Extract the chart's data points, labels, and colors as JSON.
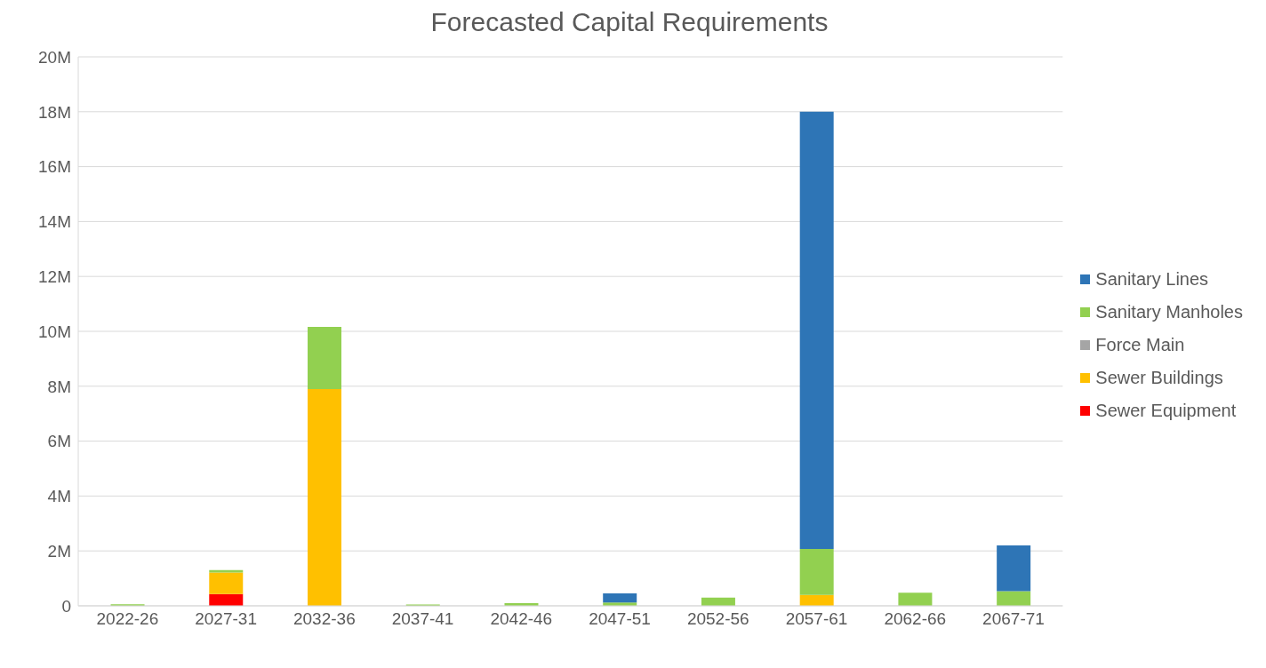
{
  "chart_data": {
    "type": "bar",
    "title": "Forecasted Capital Requirements",
    "stacked": true,
    "grid": "y",
    "legend": "right",
    "categories": [
      "2022-26",
      "2027-31",
      "2032-36",
      "2037-41",
      "2042-46",
      "2047-51",
      "2052-56",
      "2057-61",
      "2062-66",
      "2067-71"
    ],
    "ylim": [
      0,
      20
    ],
    "yticks": [
      0,
      {
        "value": 2,
        "label": "2M"
      },
      {
        "value": 4,
        "label": "4M"
      },
      {
        "value": 6,
        "label": "6M"
      },
      {
        "value": 8,
        "label": "8M"
      },
      {
        "value": 10,
        "label": "10M"
      },
      {
        "value": 12,
        "label": "12M"
      },
      {
        "value": 14,
        "label": "14M"
      },
      {
        "value": 16,
        "label": "16M"
      },
      {
        "value": 18,
        "label": "18M"
      },
      {
        "value": 20,
        "label": "20M"
      }
    ],
    "series": [
      {
        "name": "Sewer Equipment",
        "color": "#ff0000",
        "values": [
          0,
          0.43,
          0,
          0,
          0,
          0,
          0,
          0,
          0,
          0
        ]
      },
      {
        "name": "Sewer Buildings",
        "color": "#ffc000",
        "values": [
          0,
          0.78,
          7.9,
          0,
          0,
          0,
          0,
          0.4,
          0,
          0
        ]
      },
      {
        "name": "Force Main",
        "color": "#a5a5a5",
        "values": [
          0,
          0,
          0,
          0,
          0,
          0,
          0,
          0,
          0,
          0
        ]
      },
      {
        "name": "Sanitary Manholes",
        "color": "#92d050",
        "values": [
          0.06,
          0.09,
          2.26,
          0.05,
          0.1,
          0.12,
          0.3,
          1.67,
          0.48,
          0.53
        ]
      },
      {
        "name": "Sanitary Lines",
        "color": "#2e75b6",
        "values": [
          0,
          0,
          0,
          0,
          0,
          0.33,
          0,
          15.93,
          0,
          1.67
        ]
      }
    ]
  }
}
